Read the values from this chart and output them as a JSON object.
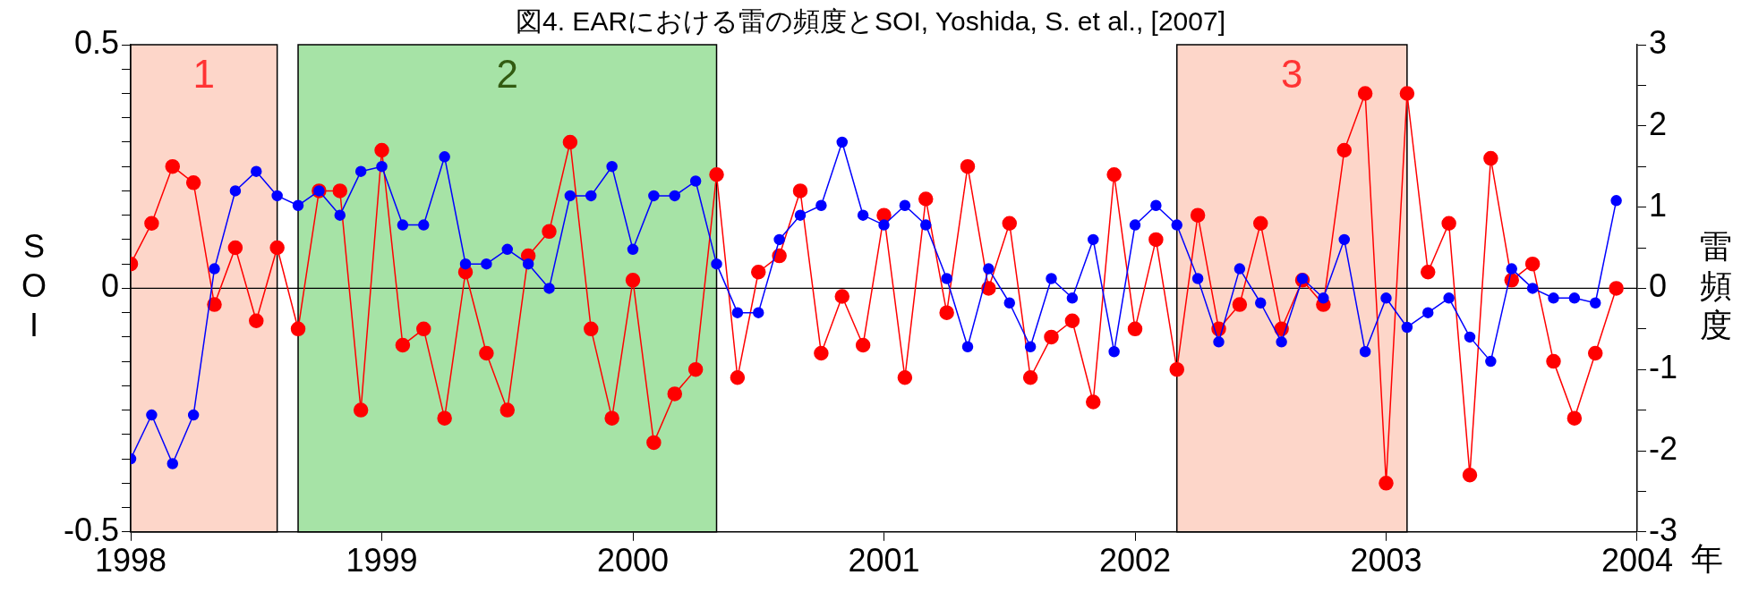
{
  "chart_data": {
    "type": "line",
    "title": "図4. EARにおける雷の頻度とSOI, Yoshida, S. et al., [2007]",
    "xlabel": "年",
    "ylabel": "SOI",
    "y2label": "雷頻度",
    "x": [
      "1998-01",
      "1998-02",
      "1998-03",
      "1998-04",
      "1998-05",
      "1998-06",
      "1998-07",
      "1998-08",
      "1998-09",
      "1998-10",
      "1998-11",
      "1998-12",
      "1999-01",
      "1999-02",
      "1999-03",
      "1999-04",
      "1999-05",
      "1999-06",
      "1999-07",
      "1999-08",
      "1999-09",
      "1999-10",
      "1999-11",
      "1999-12",
      "2000-01",
      "2000-02",
      "2000-03",
      "2000-04",
      "2000-05",
      "2000-06",
      "2000-07",
      "2000-08",
      "2000-09",
      "2000-10",
      "2000-11",
      "2000-12",
      "2001-01",
      "2001-02",
      "2001-03",
      "2001-04",
      "2001-05",
      "2001-06",
      "2001-07",
      "2001-08",
      "2001-09",
      "2001-10",
      "2001-11",
      "2001-12",
      "2002-01",
      "2002-02",
      "2002-03",
      "2002-04",
      "2002-05",
      "2002-06",
      "2002-07",
      "2002-08",
      "2002-09",
      "2002-10",
      "2002-11",
      "2002-12",
      "2003-01",
      "2003-02",
      "2003-03",
      "2003-04",
      "2003-05",
      "2003-06",
      "2003-07",
      "2003-08",
      "2003-09",
      "2003-10",
      "2003-11",
      "2003-12"
    ],
    "series": [
      {
        "color": "#0000ff",
        "values": [
          -0.35,
          -0.26,
          -0.36,
          -0.26,
          0.04,
          0.2,
          0.24,
          0.19,
          0.17,
          0.2,
          0.15,
          0.24,
          0.25,
          0.13,
          0.13,
          0.27,
          0.05,
          0.05,
          0.08,
          0.05,
          0,
          0.19,
          0.19,
          0.25,
          0.08,
          0.19,
          0.19,
          0.22,
          0.05,
          -0.05,
          -0.05,
          0.1,
          0.15,
          0.17,
          0.3,
          0.15,
          0.13,
          0.17,
          0.13,
          0.02,
          -0.12,
          0.04,
          -0.03,
          -0.12,
          0.02,
          -0.02,
          0.1,
          -0.13,
          0.13,
          0.17,
          0.13,
          0.02,
          -0.11,
          0.04,
          -0.03,
          -0.11,
          0.02,
          -0.02,
          0.1,
          -0.13,
          -0.02,
          -0.08,
          -0.05,
          -0.02,
          -0.1,
          -0.15,
          0.04,
          0,
          -0.02,
          -0.02,
          -0.03,
          0.18
        ]
      },
      {
        "color": "#ff0000",
        "axis": "y2",
        "values": [
          0.3,
          0.8,
          1.5,
          1.3,
          -0.2,
          0.5,
          -0.4,
          0.5,
          -0.5,
          1.2,
          1.2,
          -1.5,
          1.7,
          -0.7,
          -0.5,
          -1.6,
          0.2,
          -0.8,
          -1.5,
          0.4,
          0.7,
          1.8,
          -0.5,
          -1.6,
          0.1,
          -1.9,
          -1.3,
          -1,
          1.4,
          -1.1,
          0.2,
          0.4,
          1.2,
          -0.8,
          -0.1,
          -0.7,
          0.9,
          -1.1,
          1.1,
          -0.3,
          1.5,
          0,
          0.8,
          -1.1,
          -0.6,
          -0.4,
          -1.4,
          1.4,
          -0.5,
          0.6,
          -1,
          0.9,
          -0.5,
          -0.2,
          0.8,
          -0.5,
          0.1,
          -0.2,
          1.7,
          2.4,
          -2.4,
          2.4,
          0.2,
          0.8,
          -2.3,
          1.6,
          0.1,
          0.3,
          -0.9,
          -1.6,
          -0.8,
          0
        ]
      }
    ],
    "xlim": [
      "1998-01",
      "2004-01"
    ],
    "xticks": [
      "1998",
      "1999",
      "2000",
      "2001",
      "2002",
      "2003",
      "2004"
    ],
    "ylim": [
      -0.5,
      0.5
    ],
    "yticks": [
      -0.5,
      {
        "value": -0.45,
        "label": null
      },
      {
        "value": -0.4,
        "label": null
      },
      {
        "value": -0.35,
        "label": null
      },
      {
        "value": -0.3,
        "label": null
      },
      {
        "value": -0.25,
        "label": null
      },
      {
        "value": -0.2,
        "label": null
      },
      {
        "value": -0.15,
        "label": null
      },
      {
        "value": -0.1,
        "label": null
      },
      {
        "value": -0.05,
        "label": null
      },
      0,
      {
        "value": 0.05,
        "label": null
      },
      {
        "value": 0.1,
        "label": null
      },
      {
        "value": 0.15,
        "label": null
      },
      {
        "value": 0.2,
        "label": null
      },
      {
        "value": 0.25,
        "label": null
      },
      {
        "value": 0.3,
        "label": null
      },
      {
        "value": 0.35,
        "label": null
      },
      {
        "value": 0.4,
        "label": null
      },
      {
        "value": 0.45,
        "label": null
      },
      0.5
    ],
    "y2lim": [
      -3,
      3
    ],
    "y2ticks": [
      -3,
      {
        "value": -2.5,
        "label": null
      },
      -2,
      {
        "value": -1.5,
        "label": null
      },
      -1,
      {
        "value": -0.5,
        "label": null
      },
      0,
      {
        "value": 0.5,
        "label": null
      },
      1,
      {
        "value": 1.5,
        "label": null
      },
      2,
      {
        "value": 2.5,
        "label": null
      },
      3
    ],
    "ref_lines": [
      {
        "axis": "y",
        "value": 0,
        "color": "#000000"
      }
    ],
    "bands": [
      {
        "axis": "x",
        "from": "1998-01",
        "to": "1998-08",
        "label": "1",
        "color": "#fdd6c9"
      },
      {
        "axis": "x",
        "from": "1998-09",
        "to": "2000-05",
        "label": "2",
        "color": "#a6e3a6"
      },
      {
        "axis": "x",
        "from": "2002-03",
        "to": "2003-02",
        "label": "3",
        "color": "#fdd6c9"
      }
    ],
    "marker": "circle",
    "line_style": "solid",
    "legend": false,
    "grid": false
  }
}
